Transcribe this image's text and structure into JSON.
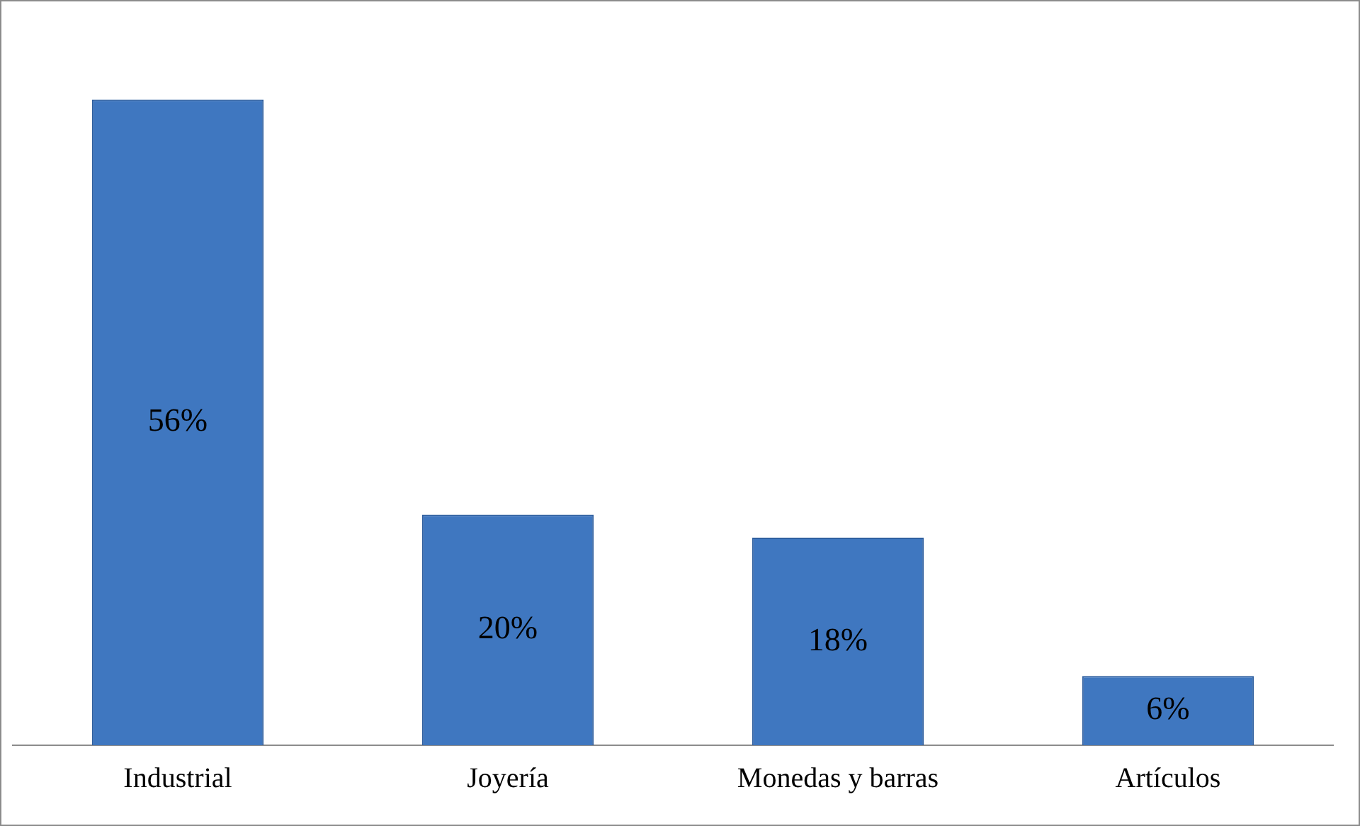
{
  "chart_data": {
    "type": "bar",
    "categories": [
      "Industrial",
      "Joyería",
      "Monedas y barras",
      "Artículos"
    ],
    "values": [
      56,
      20,
      18,
      6
    ],
    "value_labels": [
      "56%",
      "20%",
      "18%",
      "6%"
    ],
    "color": "#3f77c0",
    "grid": false,
    "legend": false
  }
}
